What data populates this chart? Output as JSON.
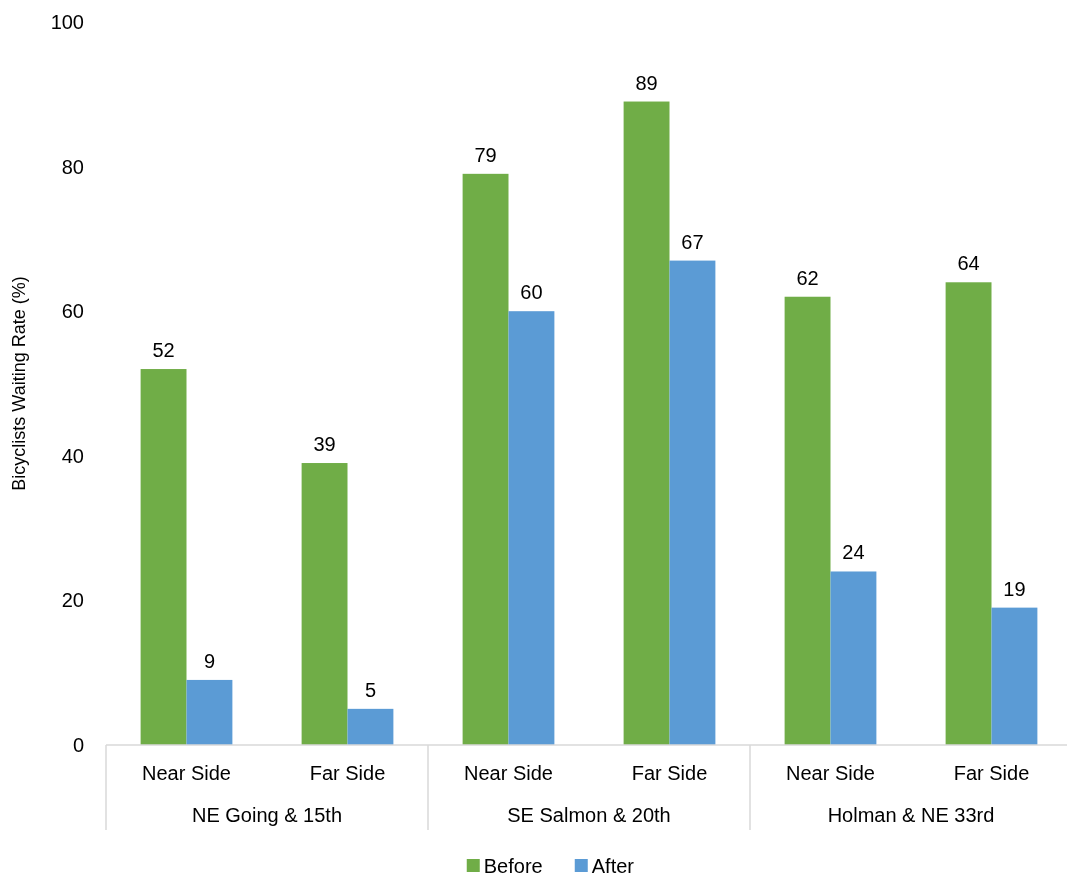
{
  "chart_data": {
    "type": "bar",
    "ylabel": "Bicyclists Waiting Rate (%)",
    "categories": [
      "Near Side",
      "Far Side",
      "Near Side",
      "Far Side",
      "Near Side",
      "Far Side"
    ],
    "annotations": [
      "NE Going & 15th",
      "SE Salmon & 20th",
      "Holman & NE 33rd"
    ],
    "series": [
      {
        "name": "Before",
        "color": "#70ad47",
        "values": [
          52,
          39,
          79,
          89,
          62,
          64
        ]
      },
      {
        "name": "After",
        "color": "#5b9bd5",
        "values": [
          9,
          5,
          60,
          67,
          24,
          19
        ]
      }
    ],
    "ylim": [
      0,
      100
    ],
    "yticks": [
      0,
      20,
      40,
      60,
      80,
      100
    ],
    "data_labels": true,
    "legend": "bottom",
    "grid": false
  }
}
